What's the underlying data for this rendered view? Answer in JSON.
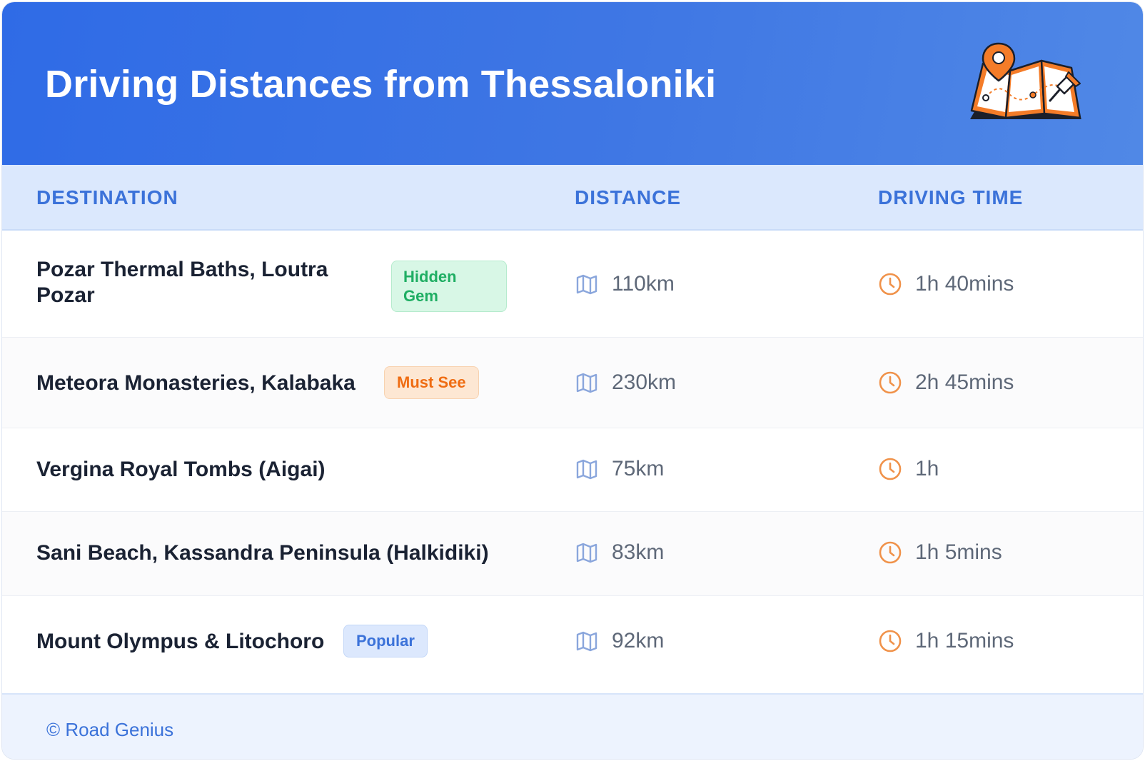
{
  "header": {
    "title": "Driving Distances from Thessaloniki"
  },
  "table": {
    "columns": [
      "DESTINATION",
      "DISTANCE",
      "DRIVING TIME"
    ],
    "rows": [
      {
        "destination_line1": "Pozar Thermal Baths, Loutra",
        "destination_line2": "Pozar",
        "badge_line1": "Hidden",
        "badge_line2": "Gem",
        "distance": "110km",
        "time": "1h 40mins"
      },
      {
        "destination": "Meteora Monasteries, Kalabaka",
        "badge": "Must See",
        "distance": "230km",
        "time": "2h 45mins"
      },
      {
        "destination": "Vergina Royal Tombs (Aigai)",
        "distance": "75km",
        "time": "1h"
      },
      {
        "destination": "Sani Beach, Kassandra Peninsula (Halkidiki)",
        "distance": "83km",
        "time": "1h 5mins"
      },
      {
        "destination": "Mount Olympus & Litochoro",
        "badge": "Popular",
        "distance": "92km",
        "time": "1h 15mins"
      }
    ]
  },
  "footer": {
    "copyright": "© Road Genius"
  },
  "icons": {
    "distance": "map-icon",
    "time": "clock-icon",
    "header": "map-pin-illustration"
  },
  "colors": {
    "header_bg": "#3470e4",
    "accent_blue": "#3b72d9",
    "accent_orange": "#ef6c12",
    "accent_green": "#1fae63",
    "icon_blue": "#8aa6dc",
    "icon_orange": "#f0924a"
  }
}
